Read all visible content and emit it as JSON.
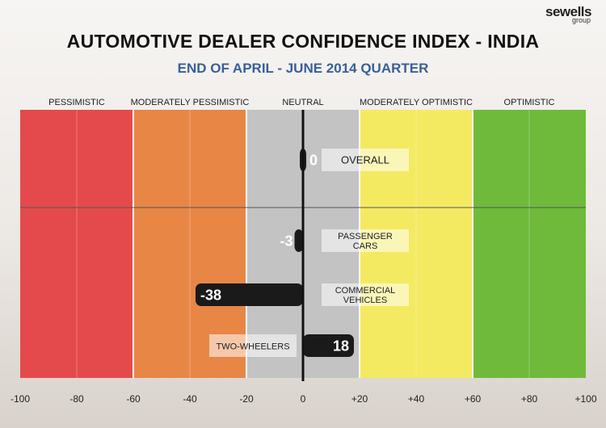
{
  "brand": {
    "name": "sewells",
    "sub": "group"
  },
  "chart_data": {
    "type": "bar",
    "orientation": "horizontal",
    "title": "AUTOMOTIVE DEALER CONFIDENCE INDEX - INDIA",
    "subtitle": "END OF APRIL - JUNE 2014 QUARTER",
    "xlim": [
      -100,
      100
    ],
    "x_ticks": [
      "-100",
      "-80",
      "-60",
      "-40",
      "-20",
      "0",
      "+20",
      "+40",
      "+60",
      "+80",
      "+100"
    ],
    "zones": [
      {
        "label": "PESSIMISTIC",
        "from": -100,
        "to": -60,
        "color": "#e44a4b"
      },
      {
        "label": "MODERATELY PESSIMISTIC",
        "from": -60,
        "to": -20,
        "color": "#e88646"
      },
      {
        "label": "NEUTRAL",
        "from": -20,
        "to": 20,
        "color": "#c3c3c3"
      },
      {
        "label": "MODERATELY OPTIMISTIC",
        "from": 20,
        "to": 60,
        "color": "#f4ea62"
      },
      {
        "label": "OPTIMISTIC",
        "from": 60,
        "to": 100,
        "color": "#6fba3b"
      }
    ],
    "bars": [
      {
        "category": "OVERALL",
        "category_lines": [
          "OVERALL"
        ],
        "value": 0,
        "value_label": "0"
      },
      {
        "category": "PASSENGER CARS",
        "category_lines": [
          "PASSENGER",
          "CARS"
        ],
        "value": -3,
        "value_label": "-3"
      },
      {
        "category": "COMMERCIAL VEHICLES",
        "category_lines": [
          "COMMERCIAL",
          "VEHICLES"
        ],
        "value": -38,
        "value_label": "-38"
      },
      {
        "category": "TWO-WHEELERS",
        "category_lines": [
          "TWO-WHEELERS"
        ],
        "value": 18,
        "value_label": "18"
      }
    ],
    "grid": true
  }
}
